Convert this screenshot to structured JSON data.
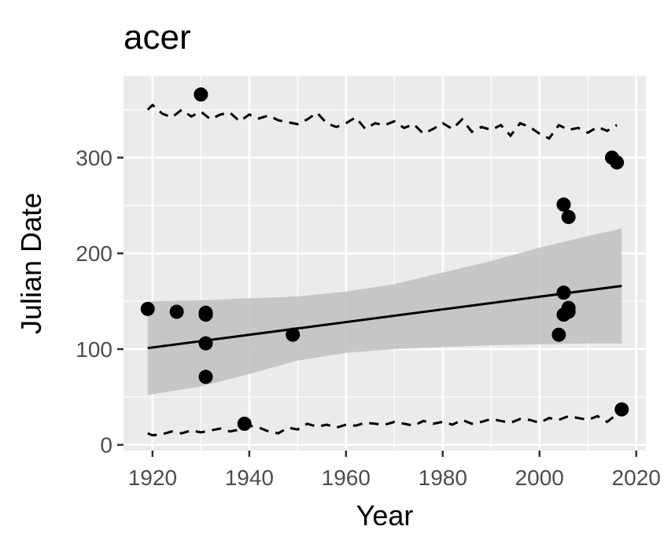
{
  "chart_data": {
    "type": "scatter",
    "title": "acer",
    "xlabel": "Year",
    "ylabel": "Julian Date",
    "xlim": [
      1914,
      2022
    ],
    "ylim": [
      -6,
      385
    ],
    "x_ticks": [
      1920,
      1940,
      1960,
      1980,
      2000,
      2020
    ],
    "y_ticks": [
      0,
      100,
      200,
      300
    ],
    "grid": true,
    "legend": "none",
    "colors": {
      "panel": "#ebebeb",
      "grid": "#ffffff",
      "points": "#000000",
      "ribbon": "#bfbfbf"
    },
    "points": [
      {
        "x": 1919,
        "y": 142
      },
      {
        "x": 1925,
        "y": 139
      },
      {
        "x": 1930,
        "y": 366
      },
      {
        "x": 1931,
        "y": 138
      },
      {
        "x": 1931,
        "y": 136
      },
      {
        "x": 1931,
        "y": 106
      },
      {
        "x": 1931,
        "y": 71
      },
      {
        "x": 1939,
        "y": 22
      },
      {
        "x": 1949,
        "y": 115
      },
      {
        "x": 2004,
        "y": 115
      },
      {
        "x": 2005,
        "y": 251
      },
      {
        "x": 2005,
        "y": 159
      },
      {
        "x": 2005,
        "y": 136
      },
      {
        "x": 2006,
        "y": 238
      },
      {
        "x": 2006,
        "y": 143
      },
      {
        "x": 2006,
        "y": 139
      },
      {
        "x": 2015,
        "y": 300
      },
      {
        "x": 2016,
        "y": 295
      },
      {
        "x": 2017,
        "y": 37
      }
    ],
    "trend_line": {
      "x": [
        1919,
        2017
      ],
      "y": [
        101,
        166
      ]
    },
    "confidence_band": {
      "x": [
        1919,
        1930,
        1940,
        1950,
        1960,
        1970,
        1980,
        1990,
        2000,
        2010,
        2017
      ],
      "upper": [
        150,
        151,
        153,
        155,
        160,
        168,
        180,
        192,
        206,
        218,
        226
      ],
      "lower": [
        52,
        61,
        74,
        88,
        96,
        100,
        102,
        104,
        105,
        106,
        106
      ]
    },
    "upper_dashed": {
      "x": [
        1919,
        1920,
        1922,
        1924,
        1926,
        1928,
        1930,
        1932,
        1934,
        1936,
        1938,
        1940,
        1942,
        1944,
        1946,
        1948,
        1950,
        1952,
        1954,
        1956,
        1958,
        1960,
        1962,
        1964,
        1966,
        1968,
        1970,
        1972,
        1974,
        1976,
        1978,
        1980,
        1982,
        1984,
        1986,
        1988,
        1990,
        1992,
        1994,
        1996,
        1998,
        2000,
        2002,
        2004,
        2006,
        2008,
        2010,
        2012,
        2014,
        2016
      ],
      "y": [
        350,
        355,
        346,
        342,
        350,
        343,
        348,
        340,
        345,
        347,
        338,
        345,
        341,
        344,
        339,
        337,
        335,
        340,
        347,
        336,
        332,
        336,
        342,
        330,
        336,
        334,
        338,
        331,
        335,
        325,
        330,
        336,
        330,
        340,
        327,
        332,
        329,
        334,
        323,
        336,
        332,
        325,
        320,
        334,
        329,
        331,
        326,
        332,
        328,
        334
      ]
    },
    "lower_dashed": {
      "x": [
        1919,
        1920,
        1922,
        1924,
        1926,
        1928,
        1930,
        1932,
        1934,
        1936,
        1938,
        1940,
        1942,
        1944,
        1946,
        1948,
        1950,
        1952,
        1954,
        1956,
        1958,
        1960,
        1962,
        1964,
        1966,
        1968,
        1970,
        1972,
        1974,
        1976,
        1978,
        1980,
        1982,
        1984,
        1986,
        1988,
        1990,
        1992,
        1994,
        1996,
        1998,
        2000,
        2002,
        2004,
        2006,
        2008,
        2010,
        2012,
        2014,
        2016
      ],
      "y": [
        12,
        10,
        11,
        14,
        12,
        15,
        13,
        15,
        17,
        14,
        16,
        20,
        18,
        14,
        12,
        18,
        16,
        22,
        19,
        21,
        18,
        21,
        20,
        23,
        22,
        21,
        24,
        22,
        20,
        25,
        22,
        24,
        21,
        26,
        22,
        24,
        27,
        25,
        23,
        27,
        26,
        23,
        28,
        26,
        30,
        28,
        26,
        30,
        24,
        32
      ]
    }
  }
}
